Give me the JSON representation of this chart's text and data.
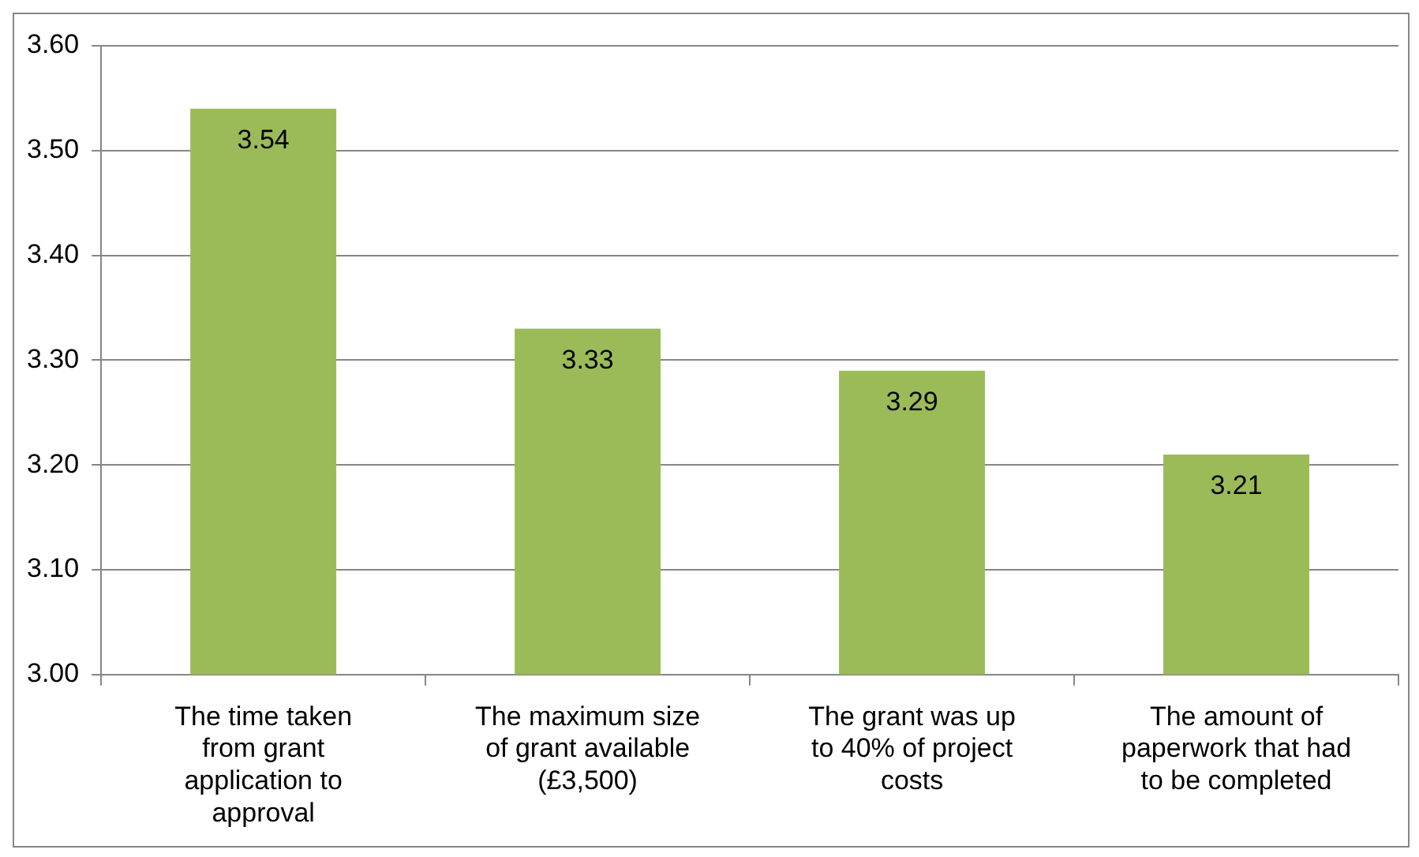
{
  "chart_data": {
    "type": "bar",
    "categories": [
      "The time taken from grant application to approval",
      "The maximum size of grant available (£3,500)",
      "The grant was up to 40% of project costs",
      "The amount of paperwork that had to be completed"
    ],
    "values": [
      3.54,
      3.33,
      3.29,
      3.21
    ],
    "color": "#9bbb59",
    "ylim": [
      3.0,
      3.6
    ],
    "yticks": [
      {
        "value": 3.0,
        "label": "3.00"
      },
      {
        "value": 3.1,
        "label": "3.10"
      },
      {
        "value": 3.2,
        "label": "3.20"
      },
      {
        "value": 3.3,
        "label": "3.30"
      },
      {
        "value": 3.4,
        "label": "3.40"
      },
      {
        "value": 3.5,
        "label": "3.50"
      },
      {
        "value": 3.6,
        "label": "3.60"
      }
    ],
    "grid": "y",
    "data_labels": true,
    "legend": false
  }
}
